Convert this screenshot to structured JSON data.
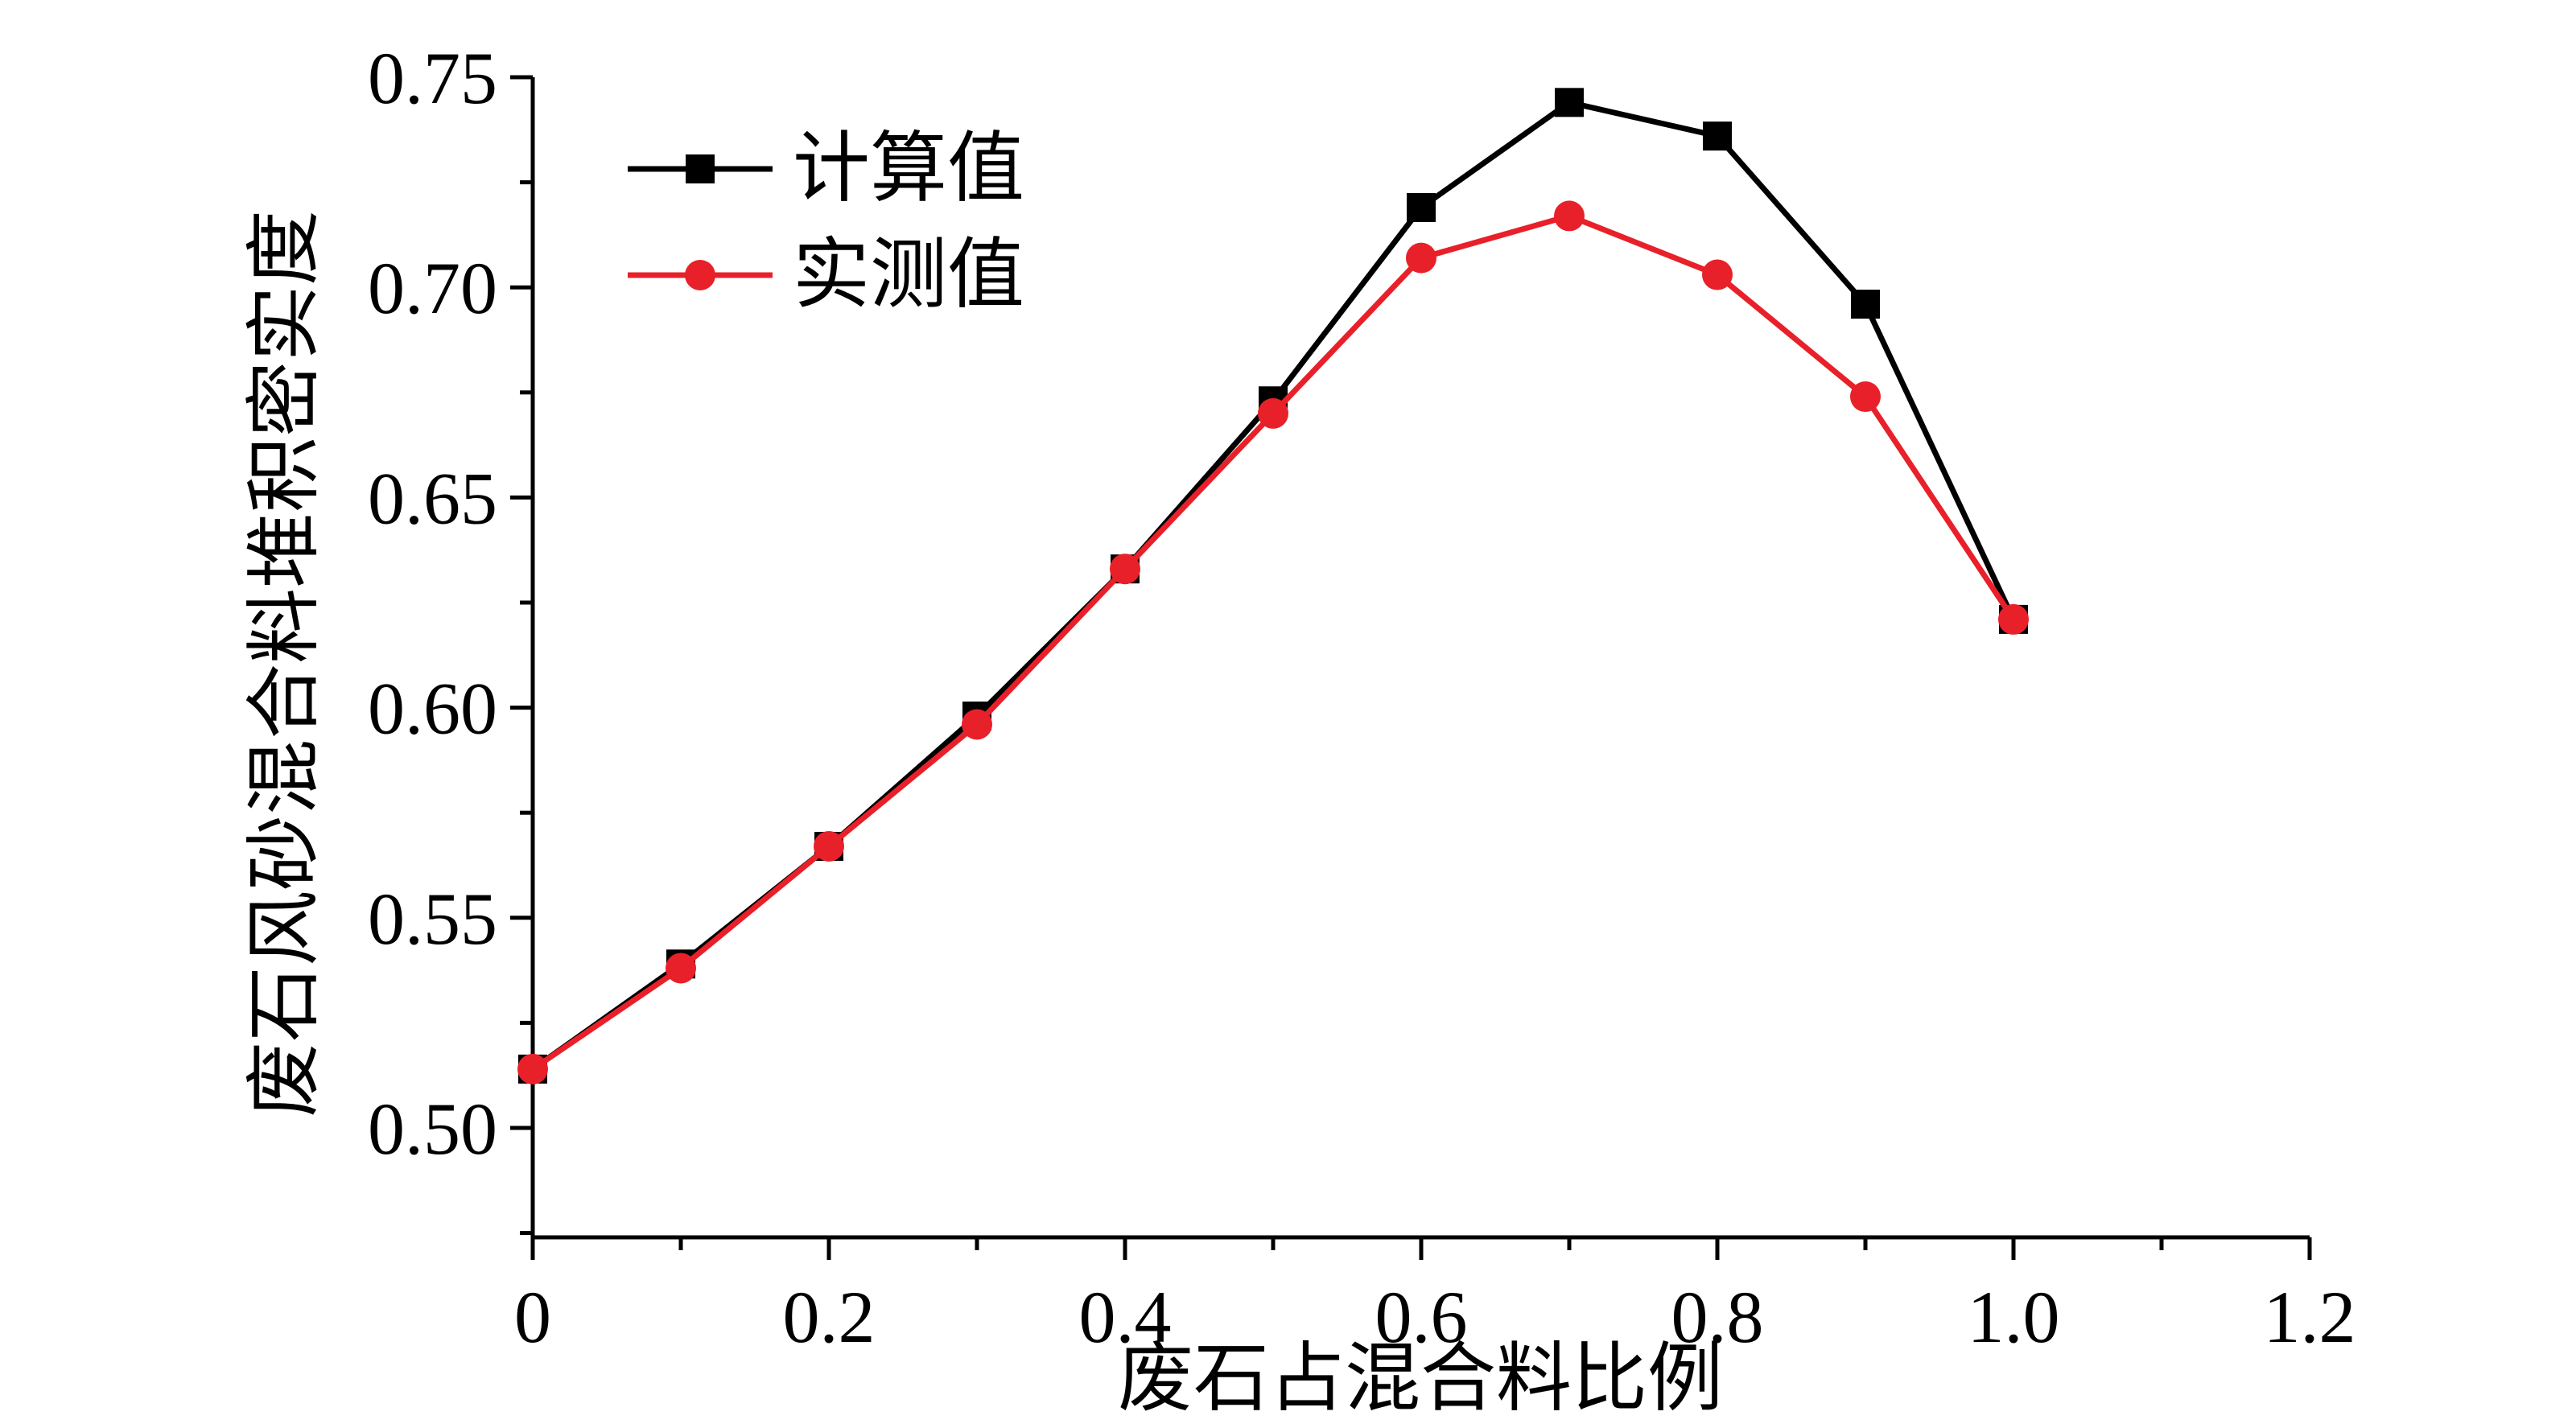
{
  "chart_data": {
    "type": "line",
    "title": "",
    "xlabel": "废石占混合料比例",
    "ylabel": "废石风砂混合料堆积密实度",
    "xlim": [
      0,
      1.2
    ],
    "ylim": [
      0.475,
      0.75
    ],
    "xticks": [
      0,
      0.2,
      0.4,
      0.6,
      0.8,
      1.0,
      1.2
    ],
    "xtick_labels": [
      "0",
      "0.2",
      "0.4",
      "0.6",
      "0.8",
      "1.0",
      "1.2"
    ],
    "yticks": [
      0.5,
      0.55,
      0.6,
      0.65,
      0.7,
      0.75
    ],
    "ytick_labels": [
      "0.50",
      "0.55",
      "0.60",
      "0.65",
      "0.70",
      "0.75"
    ],
    "grid": false,
    "legend_position": "top-left",
    "x": [
      0,
      0.1,
      0.2,
      0.3,
      0.4,
      0.5,
      0.6,
      0.7,
      0.8,
      0.9,
      1.0
    ],
    "series": [
      {
        "name": "计算值",
        "color": "#000000",
        "marker": "square",
        "values": [
          0.514,
          0.539,
          0.567,
          0.598,
          0.633,
          0.673,
          0.719,
          0.744,
          0.736,
          0.696,
          0.621
        ]
      },
      {
        "name": "实测值",
        "color": "#e8202a",
        "marker": "circle",
        "values": [
          0.514,
          0.538,
          0.567,
          0.596,
          0.633,
          0.67,
          0.707,
          0.717,
          0.703,
          0.674,
          0.621
        ]
      }
    ]
  }
}
